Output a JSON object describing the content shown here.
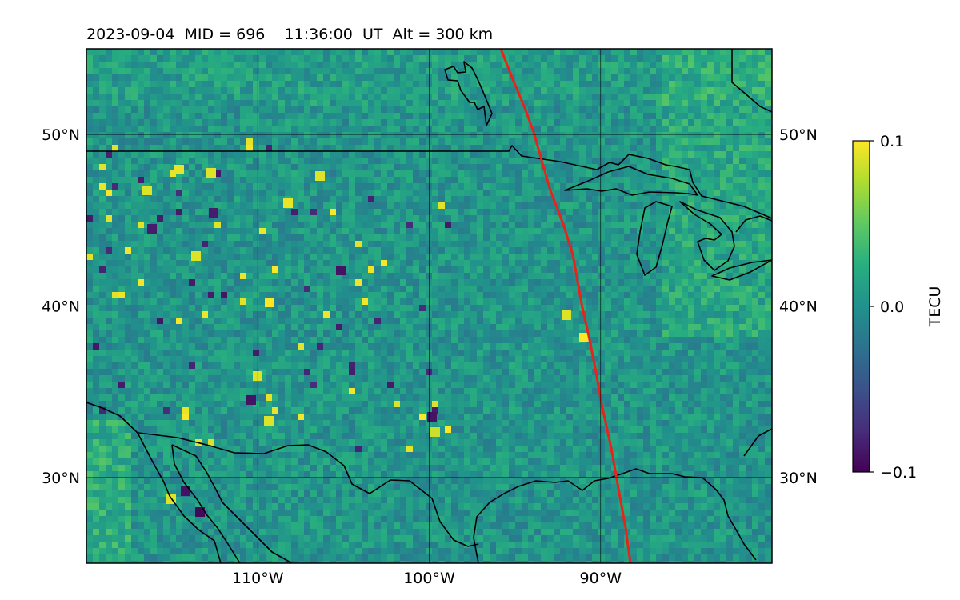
{
  "title": "2023-09-04  MID = 696    11:36:00  UT  Alt = 300 km",
  "map": {
    "lon_range": [
      -120,
      -80
    ],
    "lat_range": [
      25,
      55
    ],
    "lat_ticks": [
      {
        "value": 30,
        "label": "30°N"
      },
      {
        "value": 40,
        "label": "40°N"
      },
      {
        "value": 50,
        "label": "50°N"
      }
    ],
    "lon_ticks": [
      {
        "value": -110,
        "label": "110°W"
      },
      {
        "value": -100,
        "label": "100°W"
      },
      {
        "value": -90,
        "label": "90°W"
      }
    ],
    "gridlines": true,
    "terminator_color": "#e8231b",
    "coastline_color": "#000000"
  },
  "colorbar": {
    "label": "TECU",
    "colormap": "viridis",
    "min": -0.1,
    "max": 0.1,
    "ticks": [
      {
        "value": 0.1,
        "label": "0.1"
      },
      {
        "value": 0.0,
        "label": "0.0"
      },
      {
        "value": -0.1,
        "label": "−0.1"
      }
    ]
  }
}
